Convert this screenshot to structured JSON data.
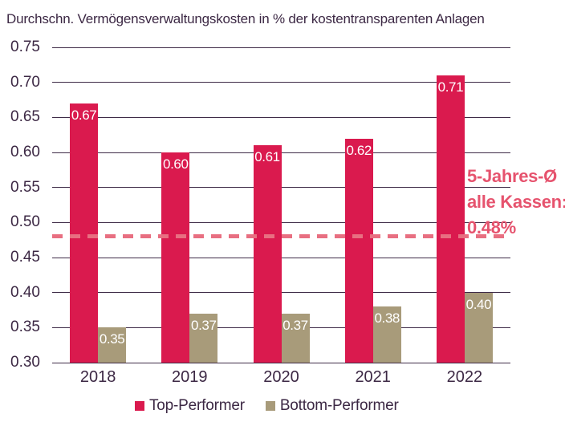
{
  "title": "Durchschn. Vermögensverwaltungskosten in % der kostentransparenten Anlagen",
  "chart_data": {
    "type": "bar",
    "categories": [
      "2018",
      "2019",
      "2020",
      "2021",
      "2022"
    ],
    "series": [
      {
        "name": "Top-Performer",
        "color": "#da1a4e",
        "values": [
          0.67,
          0.6,
          0.61,
          0.62,
          0.71
        ]
      },
      {
        "name": "Bottom-Performer",
        "color": "#a89b7a",
        "values": [
          0.35,
          0.37,
          0.37,
          0.38,
          0.4
        ]
      }
    ],
    "title": "Durchschn. Vermögensverwaltungskosten in % der kostentransparenten Anlagen",
    "xlabel": "",
    "ylabel": "",
    "ylim": [
      0.3,
      0.75
    ],
    "ytick_step": 0.05,
    "grid": true,
    "legend_position": "bottom",
    "value_label_color": "#ffffff",
    "reference_line": {
      "value": 0.48,
      "style": "dashed",
      "color": "#e86f81",
      "label_lines": [
        "5-Jahres-Ø",
        "alle Kassen:",
        "0.48%"
      ],
      "label_color": "#e6536e"
    }
  },
  "colors": {
    "text_dark": "#3c2844",
    "gridline": "#3e2b47",
    "background": "#ffffff"
  }
}
